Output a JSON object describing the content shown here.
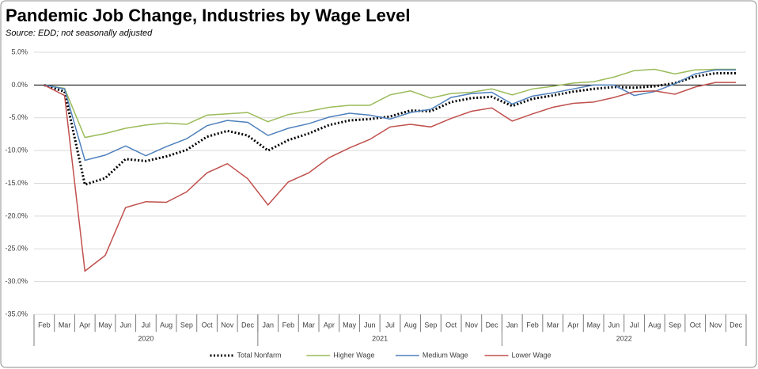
{
  "chart_data": {
    "type": "line",
    "title": "Pandemic Job Change, Industries by Wage Level",
    "subtitle": "Source:  EDD; not seasonally adjusted",
    "categories": [
      "Feb",
      "Mar",
      "Apr",
      "May",
      "Jun",
      "Jul",
      "Aug",
      "Sep",
      "Oct",
      "Nov",
      "Dec",
      "Jan",
      "Feb",
      "Mar",
      "Apr",
      "May",
      "Jun",
      "Jul",
      "Aug",
      "Sep",
      "Oct",
      "Nov",
      "Dec",
      "Jan",
      "Feb",
      "Mar",
      "Apr",
      "May",
      "Jun",
      "Jul",
      "Aug",
      "Sep",
      "Oct",
      "Nov",
      "Dec"
    ],
    "category_groups": [
      {
        "label": "2020",
        "size": 11
      },
      {
        "label": "2021",
        "size": 12
      },
      {
        "label": "2022",
        "size": 12
      }
    ],
    "ylim": [
      -35,
      5
    ],
    "yticks": [
      {
        "value": 5,
        "label": "5.0%"
      },
      {
        "value": 0,
        "label": "0.0%"
      },
      {
        "value": -5,
        "label": "-5.0%"
      },
      {
        "value": -10,
        "label": "-10.0%"
      },
      {
        "value": -15,
        "label": "-15.0%"
      },
      {
        "value": -20,
        "label": "-20.0%"
      },
      {
        "value": -25,
        "label": "-25.0%"
      },
      {
        "value": -30,
        "label": "-30.0%"
      },
      {
        "value": -35,
        "label": "-35.0%"
      }
    ],
    "grid": true,
    "legend": "bottom",
    "series": [
      {
        "name": "Total Nonfarm",
        "color": "#000000",
        "dashed": true,
        "values": [
          0,
          -1.0,
          -15.2,
          -14.2,
          -11.3,
          -11.6,
          -10.9,
          -9.9,
          -7.9,
          -7.0,
          -7.7,
          -10.0,
          -8.4,
          -7.4,
          -6.1,
          -5.4,
          -5.2,
          -4.8,
          -3.9,
          -4.0,
          -2.6,
          -2.0,
          -1.8,
          -3.2,
          -2.1,
          -1.6,
          -1.0,
          -0.6,
          -0.3,
          -0.4,
          -0.2,
          0.3,
          1.3,
          1.8,
          1.8
        ]
      },
      {
        "name": "Higher Wage",
        "color": "#9bbb59",
        "values": [
          0,
          -0.5,
          -8.0,
          -7.4,
          -6.6,
          -6.1,
          -5.8,
          -6.0,
          -4.6,
          -4.4,
          -4.2,
          -5.6,
          -4.5,
          -4.0,
          -3.4,
          -3.1,
          -3.1,
          -1.5,
          -0.9,
          -2.0,
          -1.3,
          -1.1,
          -0.6,
          -1.5,
          -0.6,
          -0.2,
          0.3,
          0.5,
          1.2,
          2.2,
          2.4,
          1.7,
          2.3,
          2.4,
          2.4
        ]
      },
      {
        "name": "Medium Wage",
        "color": "#4f81bd",
        "values": [
          0,
          -0.6,
          -11.5,
          -10.7,
          -9.3,
          -10.8,
          -9.4,
          -8.2,
          -6.2,
          -5.4,
          -5.7,
          -7.7,
          -6.6,
          -5.9,
          -4.9,
          -4.3,
          -4.6,
          -5.2,
          -4.2,
          -3.7,
          -1.9,
          -1.3,
          -1.1,
          -2.9,
          -1.7,
          -1.2,
          -0.6,
          0.0,
          0.0,
          -1.6,
          -1.0,
          0.2,
          1.7,
          2.3,
          2.3
        ]
      },
      {
        "name": "Lower Wage",
        "color": "#c0504d",
        "values": [
          0,
          -1.6,
          -28.4,
          -26.0,
          -18.7,
          -17.8,
          -17.9,
          -16.3,
          -13.4,
          -12.0,
          -14.3,
          -18.3,
          -14.8,
          -13.4,
          -11.1,
          -9.6,
          -8.3,
          -6.4,
          -6.0,
          -6.4,
          -5.1,
          -4.0,
          -3.5,
          -5.5,
          -4.4,
          -3.4,
          -2.8,
          -2.6,
          -1.9,
          -1.0,
          -0.9,
          -1.4,
          -0.3,
          0.4,
          0.4
        ]
      }
    ]
  }
}
